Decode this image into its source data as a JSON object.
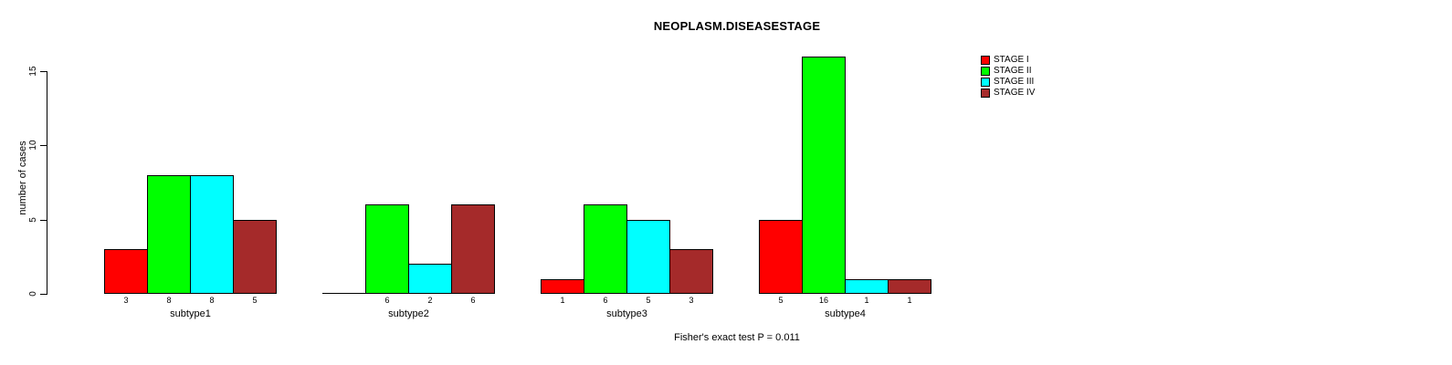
{
  "chart_data": {
    "type": "bar",
    "title": "NEOPLASM.DISEASESTAGE",
    "ylabel": "number of cases",
    "xlabel": "",
    "footer": "Fisher's exact test P = 0.011",
    "categories": [
      "subtype1",
      "subtype2",
      "subtype3",
      "subtype4"
    ],
    "series": [
      {
        "name": "STAGE I",
        "color": "#ff0000",
        "values": [
          3,
          0,
          1,
          5
        ]
      },
      {
        "name": "STAGE II",
        "color": "#00ff00",
        "values": [
          8,
          6,
          6,
          16
        ]
      },
      {
        "name": "STAGE III",
        "color": "#00ffff",
        "values": [
          8,
          2,
          5,
          1
        ]
      },
      {
        "name": "STAGE IV",
        "color": "#a52a2a",
        "values": [
          5,
          6,
          3,
          1
        ]
      }
    ],
    "bar_labels": [
      [
        "3",
        "8",
        "8",
        "5"
      ],
      [
        "",
        "6",
        "2",
        "6"
      ],
      [
        "1",
        "6",
        "5",
        "3"
      ],
      [
        "5",
        "16",
        "1",
        "1"
      ]
    ],
    "yticks": [
      0,
      5,
      10,
      15
    ],
    "ylim": [
      0,
      16
    ],
    "grid": false,
    "legend_position": "top-right",
    "text_color": "#000000",
    "background_color": "#ffffff"
  }
}
